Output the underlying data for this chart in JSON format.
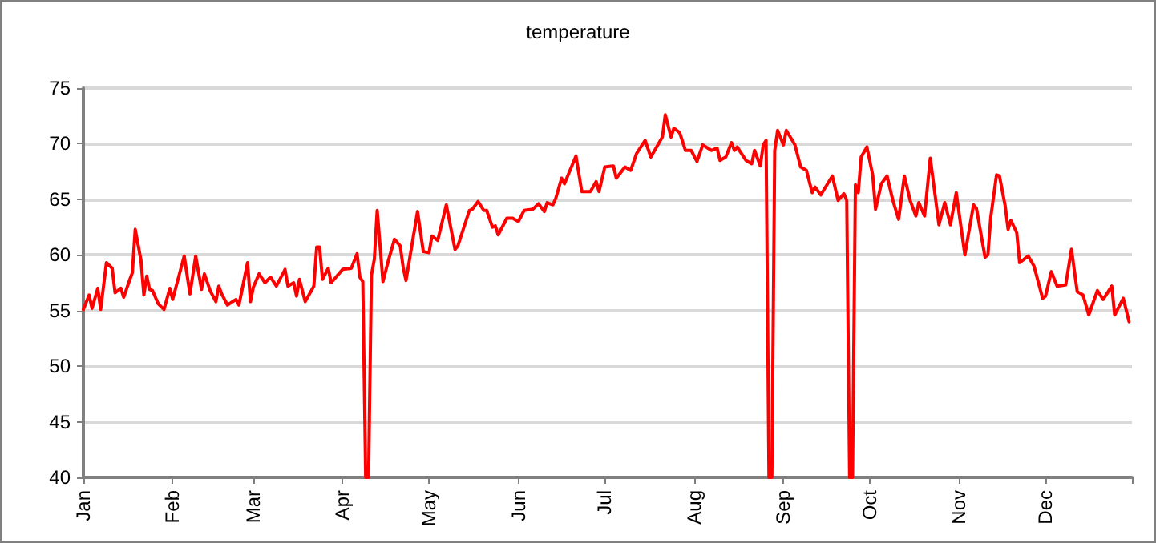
{
  "chart_data": {
    "type": "line",
    "title": "temperature",
    "color": "#ff0000",
    "marker": "none",
    "line_style": "solid",
    "grid": "y",
    "xlim": [
      "--01-01",
      "--12-31"
    ],
    "ylim": [
      40,
      75
    ],
    "yticks": [
      40,
      45,
      50,
      55,
      60,
      65,
      70,
      75
    ],
    "xticks": [
      {
        "value": "--01-01",
        "label": "Jan"
      },
      {
        "value": "--02-01",
        "label": "Feb"
      },
      {
        "value": "--03-01",
        "label": "Mar"
      },
      {
        "value": "--04-01",
        "label": "Apr"
      },
      {
        "value": "--05-01",
        "label": "May"
      },
      {
        "value": "--06-01",
        "label": "Jun"
      },
      {
        "value": "--07-01",
        "label": "Jul"
      },
      {
        "value": "--08-01",
        "label": "Aug"
      },
      {
        "value": "--09-01",
        "label": "Sep"
      },
      {
        "value": "--10-01",
        "label": "Oct"
      },
      {
        "value": "--11-01",
        "label": "Nov"
      },
      {
        "value": "--12-01",
        "label": "Dec"
      },
      {
        "value": "--12-31",
        "label": null
      }
    ],
    "x": [
      "--01-01",
      "--01-03",
      "--01-04",
      "--01-06",
      "--01-07",
      "--01-09",
      "--01-11",
      "--01-12",
      "--01-14",
      "--01-15",
      "--01-17",
      "--01-18",
      "--01-19",
      "--01-21",
      "--01-22",
      "--01-23",
      "--01-24",
      "--01-25",
      "--01-27",
      "--01-29",
      "--01-31",
      "--02-01",
      "--02-05",
      "--02-07",
      "--02-09",
      "--02-11",
      "--02-12",
      "--02-14",
      "--02-16",
      "--02-17",
      "--02-18",
      "--02-20",
      "--02-23",
      "--02-24",
      "--02-27",
      "--02-28",
      "--03-01",
      "--03-03",
      "--03-05",
      "--03-07",
      "--03-09",
      "--03-12",
      "--03-13",
      "--03-15",
      "--03-16",
      "--03-17",
      "--03-19",
      "--03-22",
      "--03-23",
      "--03-24",
      "--03-25",
      "--03-27",
      "--03-28",
      "--04-01",
      "--04-04",
      "--04-06",
      "--04-07",
      "--04-08",
      "--04-09",
      "--04-10",
      "--04-11",
      "--04-12",
      "--04-13",
      "--04-15",
      "--04-17",
      "--04-19",
      "--04-21",
      "--04-22",
      "--04-23",
      "--04-27",
      "--04-29",
      "--05-01",
      "--05-02",
      "--05-04",
      "--05-07",
      "--05-10",
      "--05-11",
      "--05-15",
      "--05-16",
      "--05-18",
      "--05-20",
      "--05-21",
      "--05-23",
      "--05-24",
      "--05-25",
      "--05-28",
      "--05-30",
      "--06-01",
      "--06-03",
      "--06-06",
      "--06-08",
      "--06-10",
      "--06-11",
      "--06-13",
      "--06-14",
      "--06-16",
      "--06-17",
      "--06-21",
      "--06-23",
      "--06-26",
      "--06-28",
      "--06-29",
      "--07-01",
      "--07-04",
      "--07-05",
      "--07-08",
      "--07-10",
      "--07-12",
      "--07-15",
      "--07-17",
      "--07-21",
      "--07-22",
      "--07-24",
      "--07-25",
      "--07-27",
      "--07-29",
      "--07-31",
      "--08-02",
      "--08-04",
      "--08-07",
      "--08-09",
      "--08-10",
      "--08-12",
      "--08-14",
      "--08-15",
      "--08-16",
      "--08-19",
      "--08-21",
      "--08-22",
      "--08-24",
      "--08-25",
      "--08-26",
      "--08-27",
      "--08-28",
      "--08-29",
      "--08-30",
      "--09-01",
      "--09-02",
      "--09-05",
      "--09-07",
      "--09-09",
      "--09-11",
      "--09-12",
      "--09-14",
      "--09-18",
      "--09-20",
      "--09-22",
      "--09-23",
      "--09-24",
      "--09-25",
      "--09-26",
      "--09-27",
      "--09-28",
      "--09-30",
      "--10-02",
      "--10-03",
      "--10-05",
      "--10-07",
      "--10-09",
      "--10-11",
      "--10-13",
      "--10-15",
      "--10-17",
      "--10-18",
      "--10-20",
      "--10-22",
      "--10-25",
      "--10-27",
      "--10-29",
      "--10-31",
      "--11-03",
      "--11-06",
      "--11-07",
      "--11-10",
      "--11-11",
      "--11-12",
      "--11-14",
      "--11-15",
      "--11-17",
      "--11-18",
      "--11-19",
      "--11-21",
      "--11-22",
      "--11-25",
      "--11-27",
      "--11-30",
      "--12-01",
      "--12-03",
      "--12-05",
      "--12-08",
      "--12-10",
      "--12-12",
      "--12-14",
      "--12-16",
      "--12-19",
      "--12-21",
      "--12-24",
      "--12-25",
      "--12-28",
      "--12-30"
    ],
    "values": [
      55.1,
      56.4,
      55.2,
      57.0,
      55.1,
      59.3,
      58.8,
      56.6,
      57.0,
      56.2,
      57.7,
      58.4,
      62.3,
      59.5,
      56.4,
      58.1,
      56.9,
      56.8,
      55.6,
      55.1,
      57.0,
      56.0,
      59.9,
      56.5,
      59.9,
      56.9,
      58.3,
      56.8,
      55.8,
      57.2,
      56.5,
      55.5,
      56.0,
      55.5,
      59.3,
      55.8,
      57.1,
      58.3,
      57.5,
      58.0,
      57.2,
      58.7,
      57.2,
      57.5,
      56.3,
      57.8,
      55.8,
      57.2,
      60.7,
      60.7,
      57.8,
      58.8,
      57.5,
      58.7,
      58.8,
      60.1,
      58.0,
      57.6,
      40,
      40,
      58.2,
      59.6,
      64.0,
      57.6,
      59.6,
      61.4,
      60.8,
      58.9,
      57.7,
      63.9,
      60.3,
      60.2,
      61.7,
      61.3,
      64.5,
      60.5,
      60.8,
      64.0,
      64.1,
      64.8,
      64.0,
      64.0,
      62.5,
      62.6,
      61.8,
      63.3,
      63.3,
      63.0,
      64.0,
      64.1,
      64.6,
      63.9,
      64.7,
      64.5,
      65.1,
      66.9,
      66.4,
      68.9,
      65.7,
      65.7,
      66.6,
      65.7,
      67.9,
      68.0,
      66.9,
      67.9,
      67.6,
      69.1,
      70.3,
      68.8,
      70.6,
      72.6,
      70.6,
      71.4,
      71.0,
      69.4,
      69.4,
      68.4,
      69.9,
      69.4,
      69.6,
      68.5,
      68.8,
      70.1,
      69.4,
      69.7,
      68.5,
      68.2,
      69.4,
      68.0,
      69.9,
      70.3,
      40,
      40,
      69.4,
      71.2,
      69.9,
      71.2,
      69.9,
      67.9,
      67.6,
      65.6,
      66.1,
      65.4,
      67.1,
      64.9,
      65.5,
      64.9,
      40,
      40,
      66.3,
      65.6,
      68.8,
      69.7,
      67.2,
      64.1,
      66.4,
      67.1,
      64.9,
      63.2,
      67.1,
      64.9,
      63.5,
      64.7,
      63.5,
      68.7,
      62.7,
      64.7,
      62.7,
      65.6,
      60.0,
      64.5,
      64.2,
      59.8,
      60.0,
      63.4,
      67.2,
      67.1,
      64.4,
      62.3,
      63.1,
      62.0,
      59.3,
      59.9,
      59.0,
      56.1,
      56.3,
      58.5,
      57.2,
      57.3,
      60.5,
      56.7,
      56.4,
      54.6,
      56.8,
      56.0,
      57.2,
      54.6,
      56.1,
      54.0
    ]
  }
}
